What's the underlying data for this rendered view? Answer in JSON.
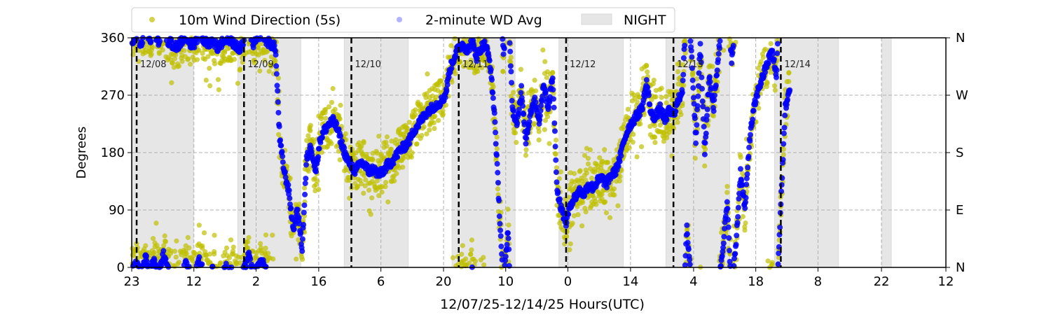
{
  "chart_data": {
    "type": "scatter",
    "title": "",
    "xlabel": "12/07/25-12/14/25  Hours(UTC)",
    "ylabel": "Degrees",
    "x_units": "hours since 12/08 00:00 UTC",
    "xlim": [
      -1.1,
      180.9
    ],
    "ylim": [
      0,
      360
    ],
    "grid": true,
    "legend_placement": "top-left, above plot",
    "legend": [
      "10m Wind Direction (5s)",
      "2-minute WD Avg",
      "NIGHT"
    ],
    "colors": {
      "wd_5s": "#bfbf00",
      "wd_avg": "#0000ff",
      "night": "#e6e6e6"
    },
    "x_ticks": [
      {
        "h": -1.1,
        "label": "23"
      },
      {
        "h": 12.8,
        "label": "12"
      },
      {
        "h": 26.7,
        "label": "2"
      },
      {
        "h": 40.7,
        "label": "16"
      },
      {
        "h": 54.6,
        "label": "6"
      },
      {
        "h": 68.6,
        "label": "20"
      },
      {
        "h": 82.5,
        "label": "10"
      },
      {
        "h": 96.4,
        "label": "0"
      },
      {
        "h": 110.4,
        "label": "14"
      },
      {
        "h": 124.5,
        "label": "4"
      },
      {
        "h": 138.4,
        "label": "18"
      },
      {
        "h": 152.3,
        "label": "8"
      },
      {
        "h": 166.5,
        "label": "22"
      },
      {
        "h": 180.9,
        "label": "12"
      }
    ],
    "y_ticks": [
      0,
      90,
      180,
      270,
      360
    ],
    "y_ticks_right": [
      "N",
      "E",
      "S",
      "W",
      "N"
    ],
    "day_markers": [
      {
        "h": 0,
        "label": "12/08"
      },
      {
        "h": 24,
        "label": "12/09"
      },
      {
        "h": 48,
        "label": "12/10"
      },
      {
        "h": 72,
        "label": "12/11"
      },
      {
        "h": 96,
        "label": "12/12"
      },
      {
        "h": 120,
        "label": "12/13"
      },
      {
        "h": 144,
        "label": "12/14"
      }
    ],
    "night_periods": [
      [
        -1.1,
        12.7
      ],
      [
        22.6,
        36.7
      ],
      [
        46.4,
        60.7
      ],
      [
        70.5,
        84.6
      ],
      [
        94.4,
        108.8
      ],
      [
        118.3,
        132.6
      ],
      [
        142.6,
        156.9
      ],
      [
        166.6,
        168.7
      ]
    ],
    "avg_start_hour": -1,
    "avg_step_hours": 1,
    "wd_avg_hourly_estimate": [
      355,
      5,
      350,
      15,
      358,
      10,
      352,
      20,
      355,
      350,
      345,
      355,
      5,
      352,
      348,
      10,
      355,
      350,
      358,
      345,
      352,
      0,
      355,
      350,
      340,
      355,
      20,
      350,
      358,
      10,
      355,
      350,
      345,
      200,
      150,
      120,
      60,
      90,
      30,
      170,
      190,
      150,
      200,
      215,
      225,
      230,
      215,
      190,
      170,
      160,
      150,
      165,
      160,
      150,
      155,
      145,
      150,
      160,
      165,
      175,
      185,
      190,
      200,
      215,
      225,
      235,
      245,
      250,
      255,
      260,
      270,
      310,
      330,
      345,
      350,
      340,
      355,
      330,
      345,
      350,
      320,
      240,
      100,
      330,
      60,
      250,
      220,
      280,
      200,
      240,
      260,
      230,
      290,
      250,
      300,
      120,
      90,
      70,
      100,
      110,
      120,
      115,
      130,
      125,
      135,
      140,
      130,
      145,
      150,
      170,
      200,
      220,
      230,
      240,
      250,
      290,
      240,
      235,
      250,
      230,
      245,
      240,
      260,
      280,
      60,
      340,
      200,
      350,
      180,
      300,
      250,
      330,
      30,
      100,
      320,
      40,
      150,
      90,
      200,
      250,
      280,
      300,
      320,
      340,
      300,
      100,
      250,
      280
    ],
    "wd_5s_spread_deg": 35
  }
}
